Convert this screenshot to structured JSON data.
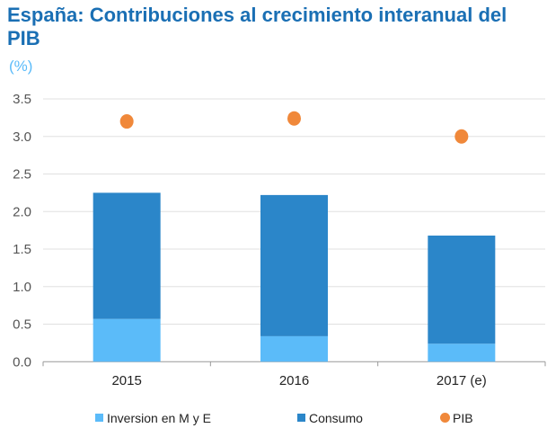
{
  "chart_data": {
    "type": "bar",
    "stacked": true,
    "title": "España: Contribuciones al crecimiento interanual del PIB",
    "unit": "(%)",
    "categories": [
      "2015",
      "2016",
      "2017 (e)"
    ],
    "series": [
      {
        "name": "Inversion en M y E",
        "type": "bar",
        "color": "#5bbbf9",
        "values": [
          0.57,
          0.34,
          0.24
        ]
      },
      {
        "name": "Consumo",
        "type": "bar",
        "color": "#2b86c9",
        "values": [
          1.68,
          1.88,
          1.44
        ]
      },
      {
        "name": "PIB",
        "type": "scatter",
        "color": "#f0883a",
        "values": [
          3.2,
          3.24,
          3.0
        ]
      }
    ],
    "ylim": [
      0,
      3.5
    ],
    "yticks": [
      "0.0",
      "0.5",
      "1.0",
      "1.5",
      "2.0",
      "2.5",
      "3.0",
      "3.5"
    ],
    "grid": true,
    "legend": "bottom"
  }
}
